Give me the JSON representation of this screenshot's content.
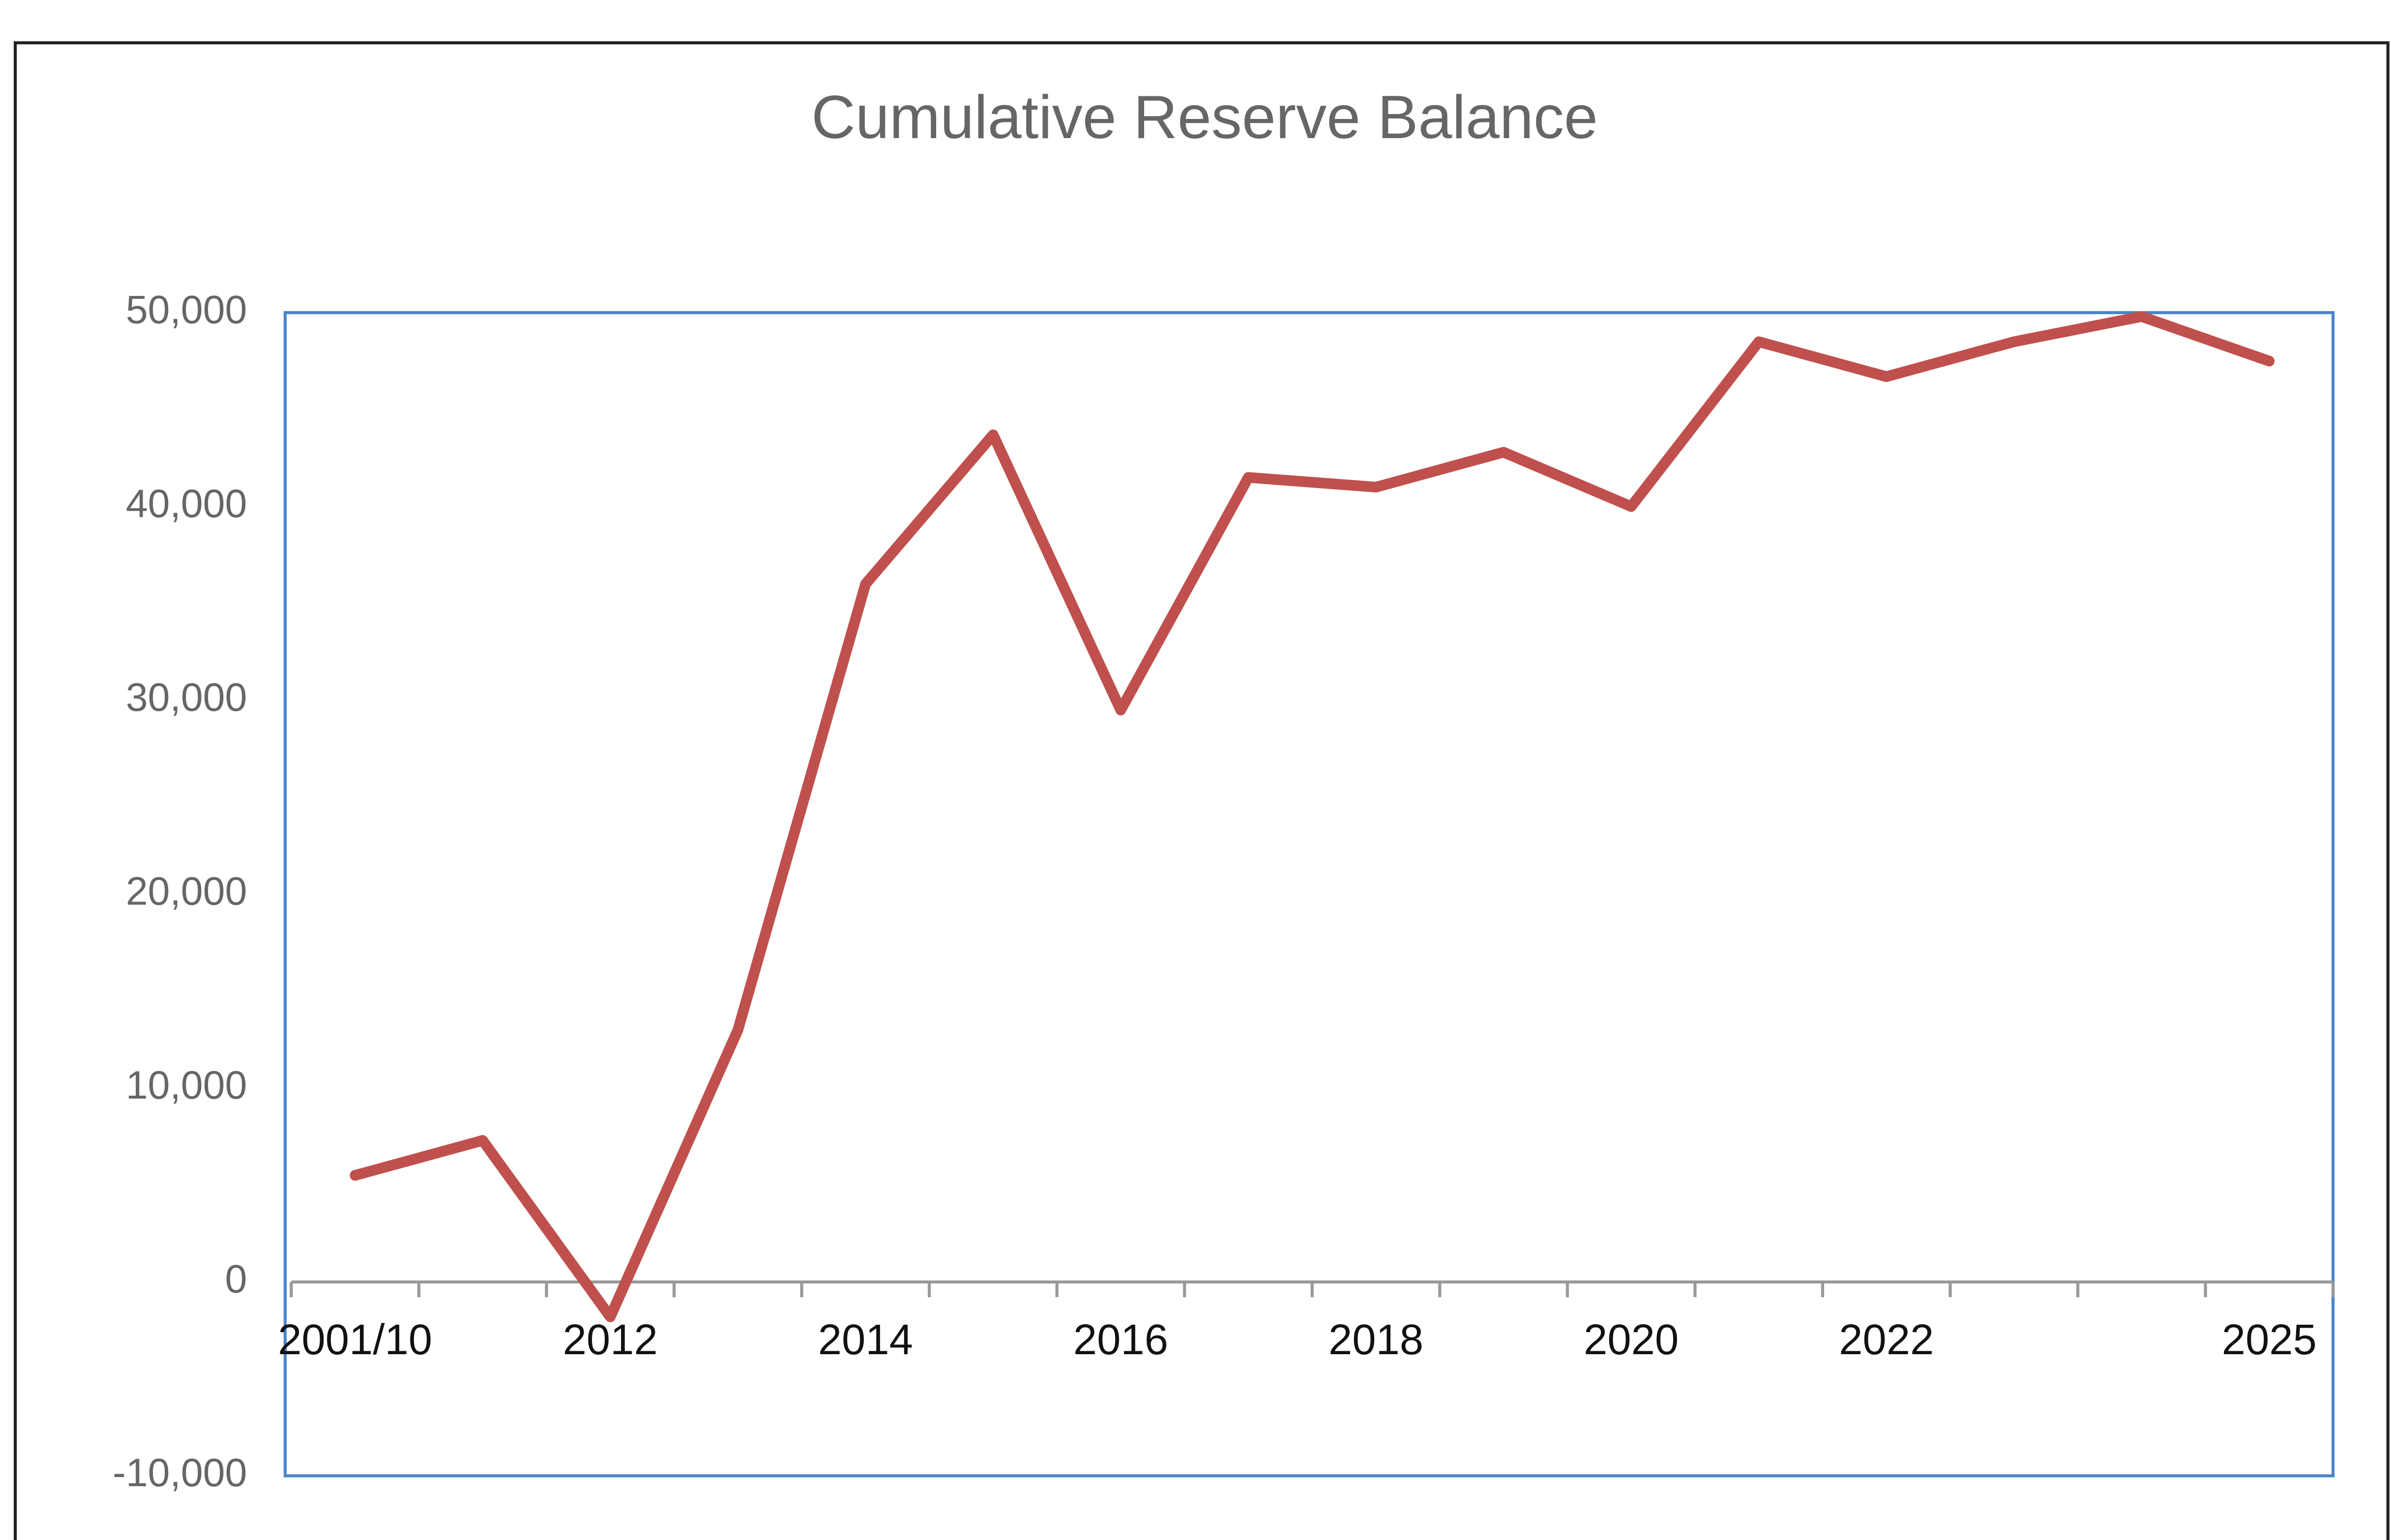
{
  "chart_data": {
    "type": "line",
    "title": "Cumulative Reserve Balance",
    "categories": [
      "2001/10",
      null,
      "2012",
      null,
      "2014",
      null,
      "2016",
      null,
      "2018",
      null,
      "2020",
      null,
      "2022",
      null,
      null,
      "2025"
    ],
    "series": [
      {
        "name": "Cumulative Reserve Balance",
        "color": "#c0504d",
        "values": [
          5500,
          7300,
          -1800,
          13000,
          36000,
          43700,
          29500,
          41500,
          41000,
          42800,
          40000,
          48500,
          46700,
          48500,
          49800,
          47500
        ]
      }
    ],
    "ylim": [
      -10000,
      50000
    ],
    "yticks": [
      {
        "value": -10000,
        "label": "-10,000"
      },
      0,
      {
        "value": 10000,
        "label": "10,000"
      },
      {
        "value": 20000,
        "label": "20,000"
      },
      {
        "value": 30000,
        "label": "30,000"
      },
      {
        "value": 40000,
        "label": "40,000"
      },
      {
        "value": 50000,
        "label": "50,000"
      }
    ],
    "grid": false
  }
}
